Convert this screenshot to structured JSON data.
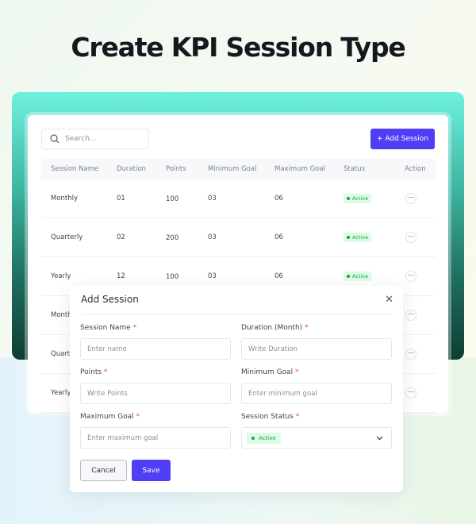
{
  "page_title": "Create KPI Session Type",
  "search": {
    "placeholder": "Search..."
  },
  "add_button": "+ Add Session",
  "table": {
    "headers": [
      "Session Name",
      "Duration",
      "Points",
      "Minimum Goal",
      "Maximum Goal",
      "Status",
      "Action"
    ],
    "rows": [
      [
        "Monthly",
        "01",
        "100",
        "03",
        "06",
        "Active"
      ],
      [
        "Quarterly",
        "02",
        "200",
        "03",
        "06",
        "Active"
      ],
      [
        "Yearly",
        "12",
        "100",
        "03",
        "06",
        "Active"
      ],
      [
        "Monthly",
        "",
        "",
        "",
        "",
        ""
      ],
      [
        "Quarterly",
        "",
        "",
        "",
        "",
        ""
      ],
      [
        "Yearly",
        "",
        "",
        "",
        "",
        ""
      ]
    ]
  },
  "modal": {
    "title": "Add Session",
    "fields": [
      {
        "label": "Session Name",
        "placeholder": "Enter name"
      },
      {
        "label": "Duration (Month)",
        "placeholder": "Write Duration"
      },
      {
        "label": "Points",
        "placeholder": "Write Points"
      },
      {
        "label": "Minimum Goal",
        "placeholder": "Enter minimum goal"
      },
      {
        "label": "Maximum Goal",
        "placeholder": "Enter maximum goal"
      },
      {
        "label": "Session Status",
        "value": "Active"
      }
    ],
    "required_mark": "*",
    "cancel": "Cancel",
    "save": "Save"
  },
  "colors": {
    "accent": "#4f3ef5",
    "active_bg": "#dcfce6",
    "active_text": "#16a34a",
    "required": "#ef4444"
  }
}
